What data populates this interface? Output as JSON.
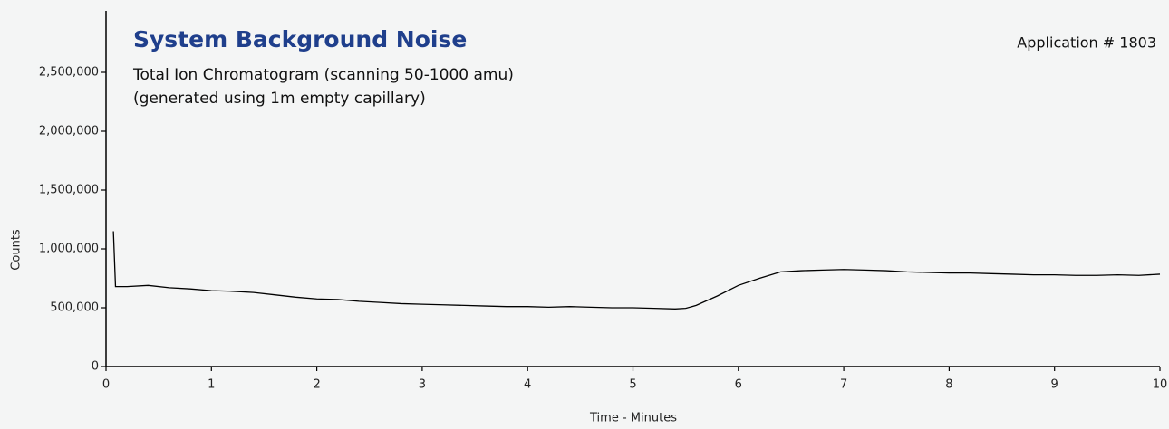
{
  "chart_data": {
    "type": "line",
    "title": "System Background Noise",
    "subtitle": [
      "Total Ion Chromatogram (scanning 50-1000 amu)",
      "(generated using 1m empty capillary)"
    ],
    "annotation": "Application # 1803",
    "x_label": "Time - Minutes",
    "y_label": "Counts",
    "color": "#000000",
    "x": [
      0.07,
      0.09,
      0.2,
      0.4,
      0.6,
      0.8,
      1.0,
      1.2,
      1.4,
      1.6,
      1.8,
      2.0,
      2.2,
      2.4,
      2.6,
      2.8,
      3.0,
      3.2,
      3.4,
      3.6,
      3.8,
      4.0,
      4.2,
      4.4,
      4.6,
      4.8,
      5.0,
      5.2,
      5.4,
      5.5,
      5.6,
      5.8,
      6.0,
      6.2,
      6.4,
      6.6,
      6.8,
      7.0,
      7.2,
      7.4,
      7.6,
      7.8,
      8.0,
      8.2,
      8.4,
      8.6,
      8.8,
      9.0,
      9.2,
      9.4,
      9.6,
      9.8,
      10.0
    ],
    "values": [
      1150000,
      680000,
      680000,
      690000,
      670000,
      660000,
      645000,
      640000,
      630000,
      610000,
      590000,
      575000,
      570000,
      555000,
      545000,
      535000,
      530000,
      525000,
      520000,
      515000,
      510000,
      510000,
      505000,
      510000,
      505000,
      500000,
      500000,
      495000,
      490000,
      495000,
      520000,
      600000,
      690000,
      750000,
      805000,
      815000,
      820000,
      825000,
      820000,
      815000,
      805000,
      800000,
      795000,
      795000,
      790000,
      785000,
      780000,
      780000,
      775000,
      775000,
      780000,
      775000,
      785000
    ],
    "xlim": [
      0,
      10
    ],
    "xticks": [
      0,
      1,
      2,
      3,
      4,
      5,
      6,
      7,
      8,
      9,
      10
    ],
    "ylim": [
      0,
      3000000
    ],
    "yticks": [
      0,
      {
        "value": 500000,
        "label": "500,000"
      },
      {
        "value": 1000000,
        "label": "1,000,000"
      },
      {
        "value": 1500000,
        "label": "1,500,000"
      },
      {
        "value": 2000000,
        "label": "2,000,000"
      },
      {
        "value": 2500000,
        "label": "2,500,000"
      }
    ]
  }
}
